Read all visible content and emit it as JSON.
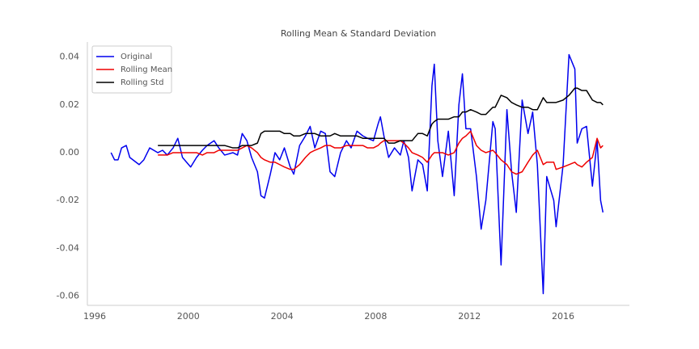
{
  "chart_data": {
    "type": "line",
    "title": "Rolling Mean & Standard Deviation",
    "x": [
      1996.7,
      1996.85,
      1997.0,
      1997.15,
      1997.35,
      1997.5,
      1997.9,
      1998.1,
      1998.35,
      1998.7,
      1998.9,
      1999.1,
      1999.35,
      1999.55,
      1999.75,
      2000.1,
      2000.35,
      2000.6,
      2000.8,
      2001.1,
      2001.3,
      2001.55,
      2001.9,
      2002.1,
      2002.3,
      2002.5,
      2002.7,
      2002.95,
      2003.1,
      2003.25,
      2003.5,
      2003.7,
      2003.9,
      2004.1,
      2004.35,
      2004.5,
      2004.75,
      2005.0,
      2005.2,
      2005.4,
      2005.65,
      2005.85,
      2006.05,
      2006.25,
      2006.5,
      2006.75,
      2006.95,
      2007.2,
      2007.45,
      2007.65,
      2007.9,
      2008.1,
      2008.2,
      2008.35,
      2008.55,
      2008.8,
      2009.05,
      2009.2,
      2009.4,
      2009.55,
      2009.8,
      2010.0,
      2010.2,
      2010.4,
      2010.5,
      2010.65,
      2010.85,
      2011.1,
      2011.35,
      2011.55,
      2011.7,
      2011.85,
      2012.05,
      2012.3,
      2012.5,
      2012.7,
      2013.0,
      2013.1,
      2013.35,
      2013.6,
      2013.8,
      2014.0,
      2014.25,
      2014.5,
      2014.7,
      2014.9,
      2015.15,
      2015.3,
      2015.6,
      2015.7,
      2016.0,
      2016.25,
      2016.5,
      2016.6,
      2016.8,
      2017.0,
      2017.25,
      2017.45,
      2017.6,
      2017.7
    ],
    "series": [
      {
        "name": "Original",
        "color": "#0000ee",
        "values": [
          0.0,
          -0.003,
          -0.003,
          0.002,
          0.003,
          -0.002,
          -0.005,
          -0.003,
          0.002,
          0.0,
          0.001,
          -0.001,
          0.002,
          0.006,
          -0.002,
          -0.006,
          -0.002,
          0.001,
          0.003,
          0.005,
          0.002,
          -0.001,
          0.0,
          -0.001,
          0.008,
          0.005,
          -0.002,
          -0.008,
          -0.018,
          -0.019,
          -0.009,
          0.0,
          -0.003,
          0.002,
          -0.006,
          -0.009,
          0.003,
          0.007,
          0.011,
          0.002,
          0.009,
          0.008,
          -0.008,
          -0.01,
          0.0,
          0.005,
          0.002,
          0.009,
          0.007,
          0.006,
          0.005,
          0.012,
          0.015,
          0.007,
          -0.002,
          0.002,
          -0.001,
          0.005,
          -0.002,
          -0.016,
          -0.003,
          -0.005,
          -0.016,
          0.028,
          0.037,
          0.005,
          -0.01,
          0.009,
          -0.018,
          0.02,
          0.033,
          0.01,
          0.01,
          -0.01,
          -0.032,
          -0.02,
          0.013,
          0.01,
          -0.047,
          0.018,
          -0.008,
          -0.025,
          0.022,
          0.008,
          0.017,
          -0.005,
          -0.059,
          -0.01,
          -0.02,
          -0.031,
          -0.005,
          0.041,
          0.035,
          0.004,
          0.01,
          0.011,
          -0.014,
          0.005,
          -0.02,
          -0.025
        ]
      },
      {
        "name": "Rolling Mean",
        "color": "#ee0000",
        "values": [
          null,
          null,
          null,
          null,
          null,
          null,
          null,
          null,
          null,
          -0.001,
          -0.001,
          -0.001,
          0.0,
          0.0,
          0.0,
          0.0,
          0.0,
          -0.001,
          0.0,
          0.0,
          0.001,
          0.001,
          0.001,
          0.001,
          0.002,
          0.003,
          0.002,
          0.0,
          -0.002,
          -0.003,
          -0.004,
          -0.004,
          -0.005,
          -0.006,
          -0.007,
          -0.007,
          -0.005,
          -0.002,
          0.0,
          0.001,
          0.002,
          0.003,
          0.003,
          0.002,
          0.002,
          0.003,
          0.003,
          0.003,
          0.003,
          0.002,
          0.002,
          0.003,
          0.004,
          0.005,
          0.005,
          0.005,
          0.005,
          0.004,
          0.002,
          0.0,
          -0.001,
          -0.002,
          -0.004,
          -0.001,
          0.0,
          0.0,
          0.0,
          -0.001,
          0.0,
          0.004,
          0.006,
          0.007,
          0.009,
          0.003,
          0.001,
          0.0,
          0.001,
          0.0,
          -0.003,
          -0.005,
          -0.008,
          -0.009,
          -0.008,
          -0.004,
          -0.001,
          0.001,
          -0.005,
          -0.004,
          -0.004,
          -0.007,
          -0.006,
          -0.005,
          -0.004,
          -0.005,
          -0.006,
          -0.004,
          -0.002,
          0.006,
          0.002,
          0.003
        ]
      },
      {
        "name": "Rolling Std",
        "color": "#000000",
        "values": [
          null,
          null,
          null,
          null,
          null,
          null,
          null,
          null,
          null,
          0.003,
          0.003,
          0.003,
          0.003,
          0.003,
          0.003,
          0.003,
          0.003,
          0.003,
          0.003,
          0.003,
          0.003,
          0.003,
          0.002,
          0.002,
          0.003,
          0.003,
          0.003,
          0.004,
          0.008,
          0.009,
          0.009,
          0.009,
          0.009,
          0.008,
          0.008,
          0.007,
          0.007,
          0.008,
          0.008,
          0.008,
          0.007,
          0.007,
          0.007,
          0.008,
          0.007,
          0.007,
          0.007,
          0.007,
          0.006,
          0.006,
          0.006,
          0.006,
          0.006,
          0.006,
          0.004,
          0.004,
          0.005,
          0.005,
          0.005,
          0.005,
          0.008,
          0.008,
          0.007,
          0.012,
          0.013,
          0.014,
          0.014,
          0.014,
          0.015,
          0.015,
          0.017,
          0.017,
          0.018,
          0.017,
          0.016,
          0.016,
          0.019,
          0.019,
          0.024,
          0.023,
          0.021,
          0.02,
          0.019,
          0.019,
          0.018,
          0.018,
          0.023,
          0.021,
          0.021,
          0.021,
          0.022,
          0.024,
          0.027,
          0.027,
          0.026,
          0.026,
          0.022,
          0.021,
          0.021,
          0.02
        ]
      }
    ],
    "xlim": [
      1995.69,
      2018.83
    ],
    "xticks": [
      1996,
      2000,
      2004,
      2008,
      2012,
      2016
    ],
    "ylim": [
      -0.0639,
      0.0463
    ],
    "yticks": [
      -0.06,
      -0.04,
      -0.02,
      {
        "value": 0,
        "label": "0.00"
      },
      0.02,
      0.04
    ],
    "grid": false,
    "legend": "upper left"
  }
}
